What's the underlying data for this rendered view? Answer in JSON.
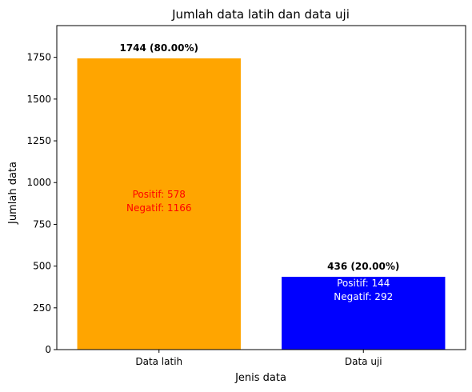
{
  "chart_data": {
    "type": "bar",
    "title": "Jumlah data latih dan data uji",
    "xlabel": "Jenis data",
    "ylabel": "Jumlah data",
    "ylim": [
      0,
      1940
    ],
    "yticks": [
      0,
      250,
      500,
      750,
      1000,
      1250,
      1500,
      1750
    ],
    "grid": false,
    "categories": [
      "Data latih",
      "Data uji"
    ],
    "values": [
      1744,
      436
    ],
    "colors": [
      "#ffa500",
      "#0000ff"
    ],
    "bar_labels": [
      "1744 (80.00%)",
      "436 (20.00%)"
    ],
    "inner_labels": [
      {
        "line1": "Positif: 578",
        "line2": "Negatif: 1166",
        "color": "#ff0000"
      },
      {
        "line1": "Positif: 144",
        "line2": "Negatif: 292",
        "color": "#ffffff"
      }
    ],
    "breakdown": [
      {
        "positif": 578,
        "negatif": 1166
      },
      {
        "positif": 144,
        "negatif": 292
      }
    ]
  }
}
